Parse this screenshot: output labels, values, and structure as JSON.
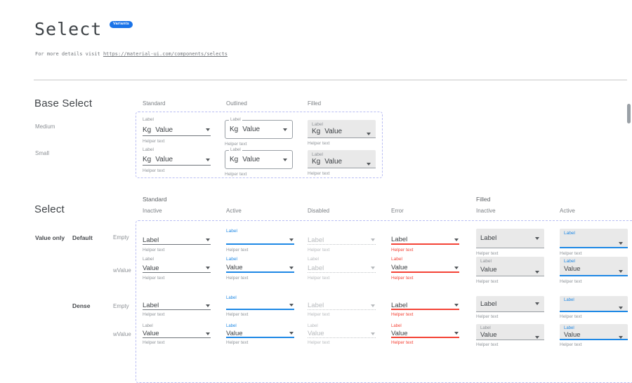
{
  "header": {
    "title": "Select",
    "badge": "Variants",
    "subtitle_prefix": "For more details visit ",
    "subtitle_link": "https://material-ui.com/components/selects"
  },
  "colors": {
    "accent_blue": "#1e88e5",
    "error_red": "#f44336",
    "badge_blue": "#1a73e8",
    "filled_background": "#e9e9e9",
    "dashed_border": "#b9bdf3"
  },
  "base_select": {
    "heading": "Base Select",
    "columns": [
      {
        "label": "Standard",
        "variant": "standard"
      },
      {
        "label": "Outlined",
        "variant": "outlined"
      },
      {
        "label": "Filled",
        "variant": "filled"
      }
    ],
    "rows": [
      {
        "label": "Medium",
        "size": "md"
      },
      {
        "label": "Small",
        "size": "sm"
      }
    ],
    "control": {
      "label": "Label",
      "adornment": "Kg",
      "value": "Value",
      "helper": "Helper text"
    }
  },
  "select_matrix": {
    "heading": "Select",
    "row_axis_label": "Value only",
    "groups": [
      {
        "label": "Standard"
      },
      {
        "label": "Filled"
      }
    ],
    "row_groups": [
      {
        "label": "Default",
        "rows": [
          {
            "label": "Empty"
          },
          {
            "label": "wValue"
          }
        ]
      },
      {
        "label": "Dense",
        "rows": [
          {
            "label": "Empty"
          },
          {
            "label": "wValue"
          }
        ]
      }
    ],
    "columns": [
      {
        "group": "Standard",
        "variant": "standard",
        "state": "Inactive",
        "state_key": "inactive",
        "cells": [
          {
            "cap": null,
            "value": "Label",
            "helper": "Helper text"
          },
          {
            "cap": "Label",
            "value": "Value",
            "helper": "Helper text"
          },
          {
            "cap": null,
            "value": "Label",
            "helper": "Helper text"
          },
          {
            "cap": "Label",
            "value": "Value",
            "helper": "Helper text"
          }
        ]
      },
      {
        "group": "Standard",
        "variant": "standard",
        "state": "Active",
        "state_key": "active",
        "cells": [
          {
            "cap": "Label",
            "value": "",
            "helper": "Helper text"
          },
          {
            "cap": "Label",
            "value": "Value",
            "helper": "Helper text"
          },
          {
            "cap": "Label",
            "value": "",
            "helper": "Helper text"
          },
          {
            "cap": "Label",
            "value": "Value",
            "helper": "Helper text"
          }
        ]
      },
      {
        "group": "Standard",
        "variant": "standard",
        "state": "Disabled",
        "state_key": "disabled",
        "cells": [
          {
            "cap": null,
            "value": "Label",
            "helper": "Helper text"
          },
          {
            "cap": "Label",
            "value": "Label",
            "helper": "Helper text"
          },
          {
            "cap": null,
            "value": "Label",
            "helper": "Helper text"
          },
          {
            "cap": "Label",
            "value": "Value",
            "helper": "Helper text"
          }
        ]
      },
      {
        "group": "Standard",
        "variant": "standard",
        "state": "Error",
        "state_key": "error",
        "cells": [
          {
            "cap": null,
            "value": "Label",
            "helper": "Helper text"
          },
          {
            "cap": "Label",
            "value": "Value",
            "helper": "Helper text"
          },
          {
            "cap": null,
            "value": "Label",
            "helper": "Helper text"
          },
          {
            "cap": "Label",
            "value": "Value",
            "helper": "Helper text"
          }
        ]
      },
      {
        "group": "Filled",
        "variant": "filled",
        "state": "Inactive",
        "state_key": "inactive",
        "cells": [
          {
            "cap": null,
            "value": "Label",
            "helper": "Helper text"
          },
          {
            "cap": "Label",
            "value": "Value",
            "helper": "Helper text"
          },
          {
            "cap": null,
            "value": "Label",
            "helper": "Helper text"
          },
          {
            "cap": "Label",
            "value": "Value",
            "helper": "Helper text"
          }
        ]
      },
      {
        "group": "Filled",
        "variant": "filled",
        "state": "Active",
        "state_key": "active",
        "cells": [
          {
            "cap": "Label",
            "value": "",
            "helper": "Helper text"
          },
          {
            "cap": "Label",
            "value": "Value",
            "helper": "Helper text"
          },
          {
            "cap": "Label",
            "value": "",
            "helper": "Helper text"
          },
          {
            "cap": "Label",
            "value": "Value",
            "helper": "Helper text"
          }
        ]
      }
    ]
  }
}
